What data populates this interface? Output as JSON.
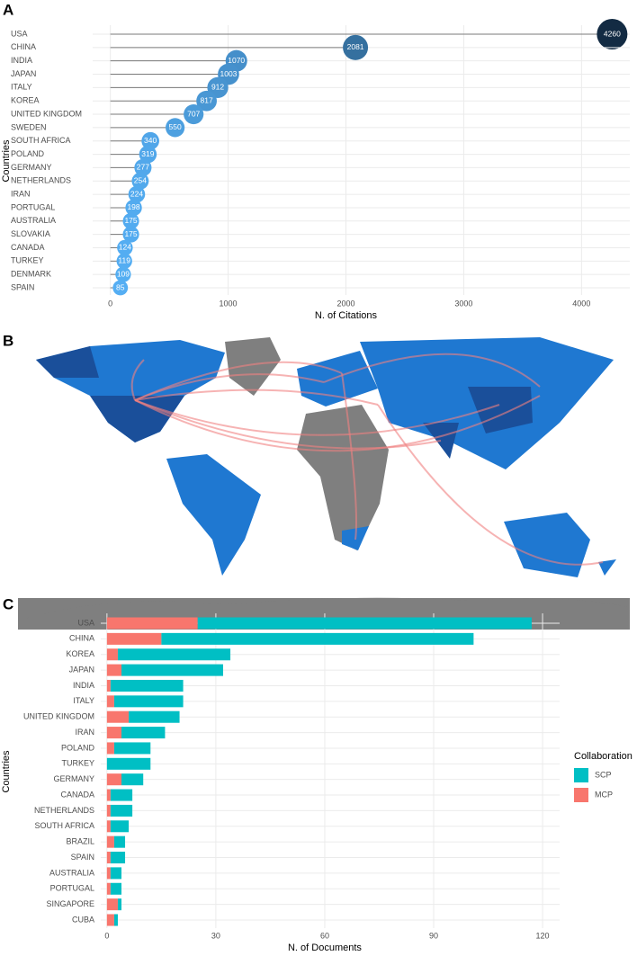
{
  "chart_data": [
    {
      "type": "lollipop",
      "panel": "A",
      "categories": [
        "USA",
        "CHINA",
        "INDIA",
        "JAPAN",
        "ITALY",
        "KOREA",
        "UNITED KINGDOM",
        "SWEDEN",
        "SOUTH AFRICA",
        "POLAND",
        "GERMANY",
        "NETHERLANDS",
        "IRAN",
        "PORTUGAL",
        "AUSTRALIA",
        "SLOVAKIA",
        "CANADA",
        "TURKEY",
        "DENMARK",
        "SPAIN"
      ],
      "values": [
        4260,
        2081,
        1070,
        1003,
        912,
        817,
        707,
        550,
        340,
        319,
        277,
        254,
        224,
        198,
        175,
        175,
        124,
        119,
        109,
        85
      ],
      "xlabel": "N. of Citations",
      "ylabel": "Countries",
      "xlim": [
        -150,
        4410
      ],
      "xticks": [
        0,
        1000,
        2000,
        3000,
        4000
      ],
      "color_low": "#56B1F7",
      "color_high": "#132B43",
      "grid": true
    },
    {
      "type": "map",
      "panel": "B"
    },
    {
      "type": "stacked_bar",
      "panel": "C",
      "categories": [
        "USA",
        "CHINA",
        "KOREA",
        "JAPAN",
        "INDIA",
        "ITALY",
        "UNITED KINGDOM",
        "IRAN",
        "POLAND",
        "TURKEY",
        "GERMANY",
        "CANADA",
        "NETHERLANDS",
        "SOUTH AFRICA",
        "BRAZIL",
        "SPAIN",
        "AUSTRALIA",
        "PORTUGAL",
        "SINGAPORE",
        "CUBA"
      ],
      "series": [
        {
          "name": "SCP",
          "color": "#00BFC4",
          "values": [
            92,
            86,
            31,
            28,
            20,
            19,
            14,
            12,
            10,
            12,
            6,
            6,
            6,
            5,
            3,
            4,
            3,
            3,
            1,
            1
          ]
        },
        {
          "name": "MCP",
          "color": "#F8766D",
          "values": [
            25,
            15,
            3,
            4,
            1,
            2,
            6,
            4,
            2,
            0,
            4,
            1,
            1,
            1,
            2,
            1,
            1,
            1,
            3,
            2
          ]
        }
      ],
      "legend_title": "Collaboration",
      "xlabel": "N. of Documents",
      "ylabel": "Countries",
      "xlim": [
        -1.7,
        124.7
      ],
      "xticks": [
        0,
        30,
        60,
        90,
        120
      ],
      "grid": true
    }
  ]
}
